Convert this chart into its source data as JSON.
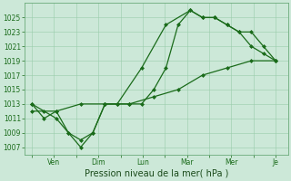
{
  "background_color": "#cce8d8",
  "grid_color": "#99ccaa",
  "line_color": "#1a6b1a",
  "xlabel": "Pression niveau de la mer( hPa )",
  "ylim": [
    1006,
    1027
  ],
  "yticks": [
    1007,
    1009,
    1011,
    1013,
    1015,
    1017,
    1019,
    1021,
    1023,
    1025
  ],
  "xtick_labels": [
    "",
    "Ven",
    "",
    "Dim",
    "",
    "Lun",
    "",
    "Mar",
    "",
    "Mer",
    "",
    "Je"
  ],
  "n_xticks": 12,
  "series1_x": [
    0,
    0.5,
    1.0,
    1.5,
    2.0,
    2.5,
    3.0,
    3.5,
    4.0,
    4.5,
    5.0,
    5.5,
    6.0,
    6.5,
    7.0,
    7.5,
    8.0,
    8.5,
    9.0,
    9.5,
    10.0
  ],
  "series1_y": [
    1013,
    1012,
    1011,
    1009,
    1007,
    1009,
    1013,
    1013,
    1013,
    1013,
    1015,
    1018,
    1024,
    1026,
    1025,
    1025,
    1024,
    1023,
    1023,
    1021,
    1019
  ],
  "series2_x": [
    0,
    0.5,
    1.0,
    1.5,
    2.0,
    2.5,
    3.0,
    3.5,
    4.5,
    5.5,
    6.5,
    7.0,
    7.5,
    8.0,
    8.5,
    9.0,
    9.5,
    10.0
  ],
  "series2_y": [
    1013,
    1011,
    1012,
    1009,
    1008,
    1009,
    1013,
    1013,
    1018,
    1024,
    1026,
    1025,
    1025,
    1024,
    1023,
    1021,
    1020,
    1019
  ],
  "series3_x": [
    0,
    1.0,
    2.0,
    3.0,
    4.0,
    5.0,
    6.0,
    7.0,
    8.0,
    9.0,
    10.0
  ],
  "series3_y": [
    1012,
    1012,
    1013,
    1013,
    1013,
    1014,
    1015,
    1017,
    1018,
    1019,
    1019
  ],
  "marker_size": 2.5,
  "line_width": 0.9,
  "xlabel_fontsize": 7,
  "tick_fontsize": 5.5
}
